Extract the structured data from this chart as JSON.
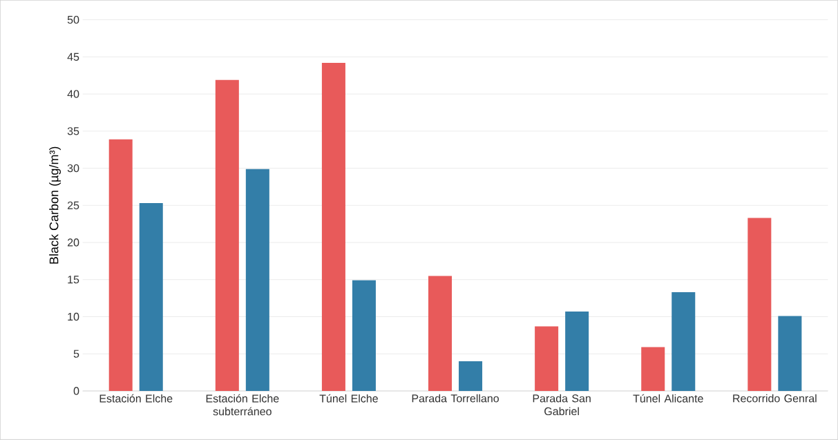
{
  "chart_data": {
    "type": "bar",
    "ylabel": "Black Carbon (µg/m³)",
    "categories": [
      "Estación Elche",
      "Estación Elche subterráneo",
      "Túnel Elche",
      "Parada Torrellano",
      "Parada San Gabriel",
      "Túnel Alicante",
      "Recorrido Genral"
    ],
    "series": [
      {
        "color": "#e85a5a",
        "values": [
          33.9,
          41.9,
          44.2,
          15.5,
          8.7,
          5.9,
          23.3
        ]
      },
      {
        "color": "#337ea8",
        "values": [
          25.3,
          29.9,
          14.9,
          4.0,
          10.7,
          13.3,
          10.1
        ]
      }
    ],
    "ylim": [
      0,
      50
    ],
    "yticks": [
      0,
      5,
      10,
      15,
      20,
      25,
      30,
      35,
      40,
      45,
      50
    ],
    "grid": "y"
  }
}
